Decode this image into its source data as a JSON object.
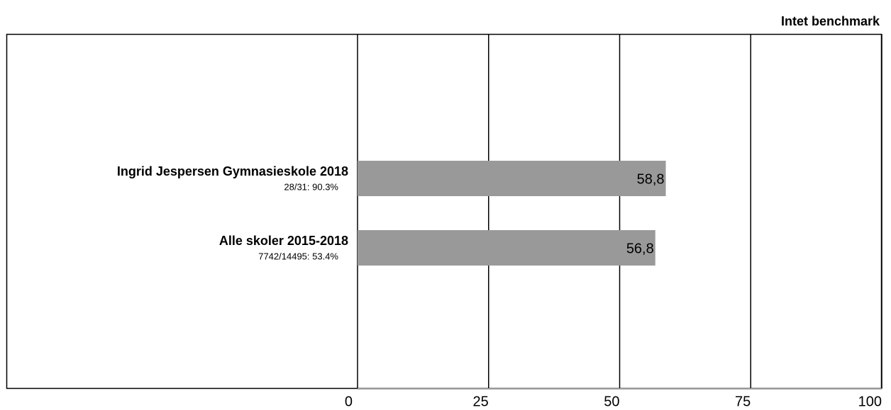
{
  "chart_data": {
    "type": "hbar",
    "annotation": "Intet benchmark",
    "categories": [
      "Ingrid Jespersen Gymnasieskole 2018",
      "Alle skoler 2015-2018"
    ],
    "category_notes": [
      "28/31: 90.3%",
      "7742/14495: 53.4%"
    ],
    "values": [
      58.8,
      56.8
    ],
    "value_labels": [
      "58,8",
      "56,8"
    ],
    "color": "#999999",
    "xlim": [
      0,
      100
    ],
    "xticks": [
      0,
      25,
      50,
      75,
      100
    ],
    "grid": true
  }
}
